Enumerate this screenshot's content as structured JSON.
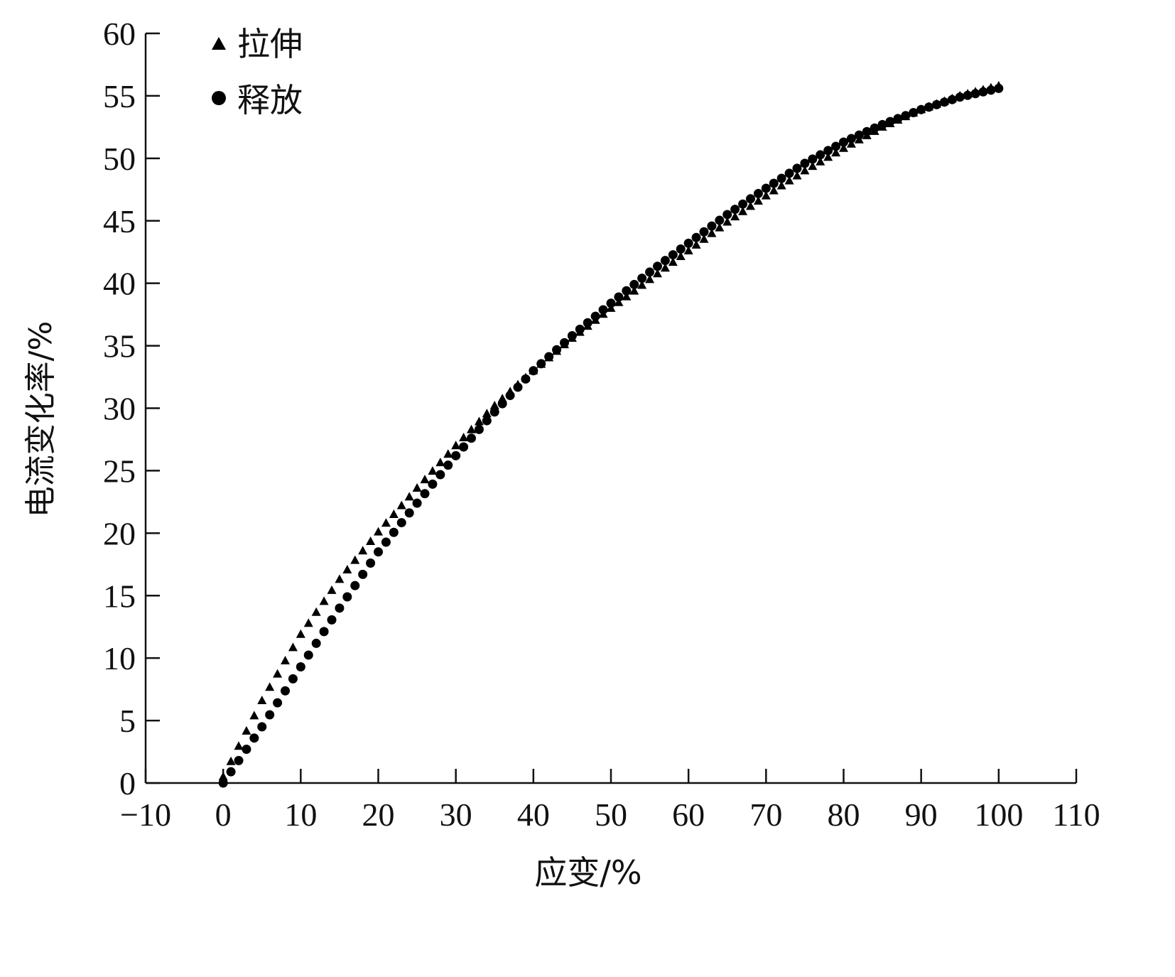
{
  "chart_data": {
    "type": "scatter",
    "xlabel": "应变/%",
    "ylabel": "电流变化率/%",
    "xlim": [
      -10,
      110
    ],
    "ylim": [
      0,
      60
    ],
    "xticks": [
      -10,
      0,
      10,
      20,
      30,
      40,
      50,
      60,
      70,
      80,
      90,
      100,
      110
    ],
    "yticks": [
      0,
      5,
      10,
      15,
      20,
      25,
      30,
      35,
      40,
      45,
      50,
      55,
      60
    ],
    "xtick_labels": [
      "−10",
      "0",
      "10",
      "20",
      "30",
      "40",
      "50",
      "60",
      "70",
      "80",
      "90",
      "100",
      "110"
    ],
    "ytick_labels": [
      "0",
      "5",
      "10",
      "15",
      "20",
      "25",
      "30",
      "35",
      "40",
      "45",
      "50",
      "55",
      "60"
    ],
    "grid": false,
    "legend_position": "top-left",
    "colors": {
      "marker": "#000000",
      "axis": "#111111"
    },
    "series": [
      {
        "name": "拉伸",
        "marker": "triangle",
        "x": [
          0,
          5,
          10,
          15,
          20,
          25,
          30,
          35,
          40,
          45,
          50,
          55,
          60,
          65,
          70,
          75,
          80,
          85,
          90,
          95,
          100
        ],
        "y": [
          0.5,
          6.6,
          11.9,
          16.3,
          20.1,
          23.6,
          27.0,
          30.2,
          33.0,
          35.6,
          38.0,
          40.3,
          42.6,
          44.9,
          47.0,
          49.0,
          50.8,
          52.5,
          53.9,
          55.0,
          55.8
        ]
      },
      {
        "name": "释放",
        "marker": "circle",
        "x": [
          0,
          5,
          10,
          15,
          20,
          25,
          30,
          35,
          40,
          45,
          50,
          55,
          60,
          65,
          70,
          75,
          80,
          85,
          90,
          95,
          100
        ],
        "y": [
          0.0,
          4.5,
          9.3,
          14.0,
          18.5,
          22.4,
          26.2,
          29.7,
          33.0,
          35.8,
          38.4,
          40.9,
          43.2,
          45.5,
          47.6,
          49.6,
          51.3,
          52.7,
          53.9,
          54.9,
          55.6
        ]
      }
    ]
  }
}
